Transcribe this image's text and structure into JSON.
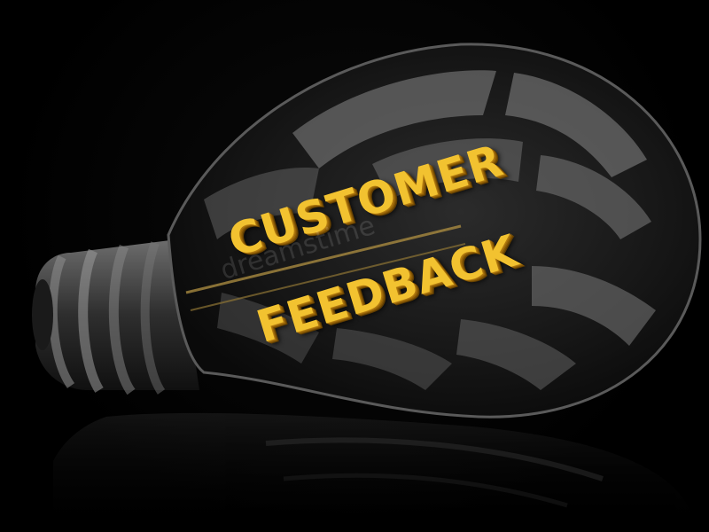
{
  "image": {
    "headline_line1": "CUSTOMER",
    "headline_line2": "FEEDBACK",
    "watermark_text": "dreamstime",
    "colors": {
      "background": "#000000",
      "text_gold": "#f2c230",
      "glass": "#3a3a3a"
    }
  }
}
